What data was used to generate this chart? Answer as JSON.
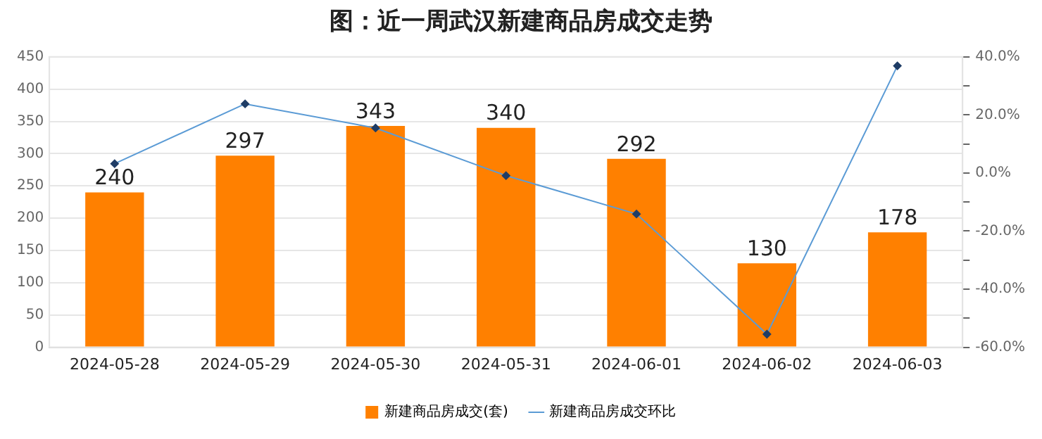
{
  "chart_data": {
    "type": "bar",
    "title": "图：近一周武汉新建商品房成交走势",
    "categories": [
      "2024-05-28",
      "2024-05-29",
      "2024-05-30",
      "2024-05-31",
      "2024-06-01",
      "2024-06-02",
      "2024-06-03"
    ],
    "series": [
      {
        "name": "新建商品房成交(套)",
        "color": "#ff8000",
        "values": [
          240,
          297,
          343,
          340,
          292,
          130,
          178
        ],
        "value_labels": [
          "240",
          "297",
          "343",
          "340",
          "292",
          "130",
          "178"
        ]
      },
      {
        "name": "新建商品房成交环比",
        "type": "line",
        "axis": "y2",
        "color": "#5b9bd5",
        "marker": "diamond",
        "values": [
          3.2,
          23.8,
          15.5,
          -0.9,
          -14.1,
          -55.5,
          36.9
        ]
      }
    ],
    "ylim": [
      0,
      450
    ],
    "yticks": [
      0,
      50,
      100,
      150,
      200,
      250,
      300,
      350,
      400,
      450
    ],
    "y2lim": [
      -60,
      40
    ],
    "y2ticks": [
      {
        "value": -60,
        "label": "-60.0%"
      },
      {
        "value": -50,
        "label": null
      },
      {
        "value": -40,
        "label": "-40.0%"
      },
      {
        "value": -30,
        "label": null
      },
      {
        "value": -20,
        "label": "-20.0%"
      },
      {
        "value": -10,
        "label": null
      },
      {
        "value": 0,
        "label": "0.0%"
      },
      {
        "value": 10,
        "label": null
      },
      {
        "value": 20,
        "label": "20.0%"
      },
      {
        "value": 30,
        "label": null
      },
      {
        "value": 40,
        "label": "40.0%"
      }
    ],
    "grid": "y",
    "legend": "bottom"
  }
}
